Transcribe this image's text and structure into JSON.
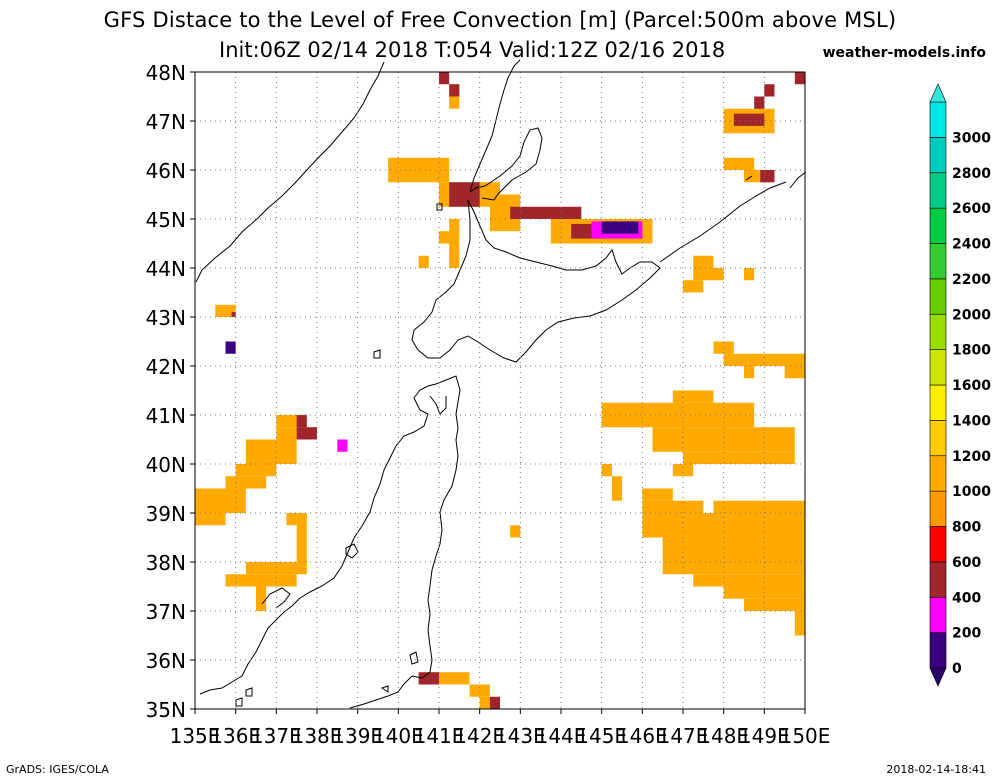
{
  "header": {
    "title": "GFS Distace to the Level of Free Convection [m] (Parcel:500m above MSL)",
    "subtitle": "Init:06Z 02/14 2018 T:054 Valid:12Z 02/16 2018",
    "source": "weather-models.info"
  },
  "footer": {
    "left": "GrADS: IGES/COLA",
    "right": "2018-02-14-18:41"
  },
  "chart_data": {
    "type": "heatmap",
    "lon_range": [
      135,
      150
    ],
    "lat_range": [
      35,
      48
    ],
    "x_ticks": [
      "135E",
      "136E",
      "137E",
      "138E",
      "139E",
      "140E",
      "141E",
      "142E",
      "143E",
      "144E",
      "145E",
      "146E",
      "147E",
      "148E",
      "149E",
      "150E"
    ],
    "y_ticks": [
      "35N",
      "36N",
      "37N",
      "38N",
      "39N",
      "40N",
      "41N",
      "42N",
      "43N",
      "44N",
      "45N",
      "46N",
      "47N",
      "48N"
    ],
    "grid": true,
    "colorbar": {
      "levels": [
        0,
        200,
        400,
        600,
        800,
        1000,
        1200,
        1400,
        1600,
        1800,
        2000,
        2200,
        2400,
        2600,
        2800,
        3000
      ],
      "colors": [
        "#3a0080",
        "#ff00ff",
        "#a0262c",
        "#ff0000",
        "#ff9900",
        "#ffaa00",
        "#ffcc00",
        "#ffee00",
        "#cce600",
        "#99dd00",
        "#66cc00",
        "#33cc33",
        "#00cc44",
        "#00cc88",
        "#00ccbb",
        "#00e6e6"
      ],
      "triangle_top": "#33e6dd",
      "triangle_bottom": "#2a006a"
    },
    "cells": [
      {
        "lon": [
          139.75,
          141.25
        ],
        "lat": [
          45.75,
          46.25
        ],
        "value": 1000
      },
      {
        "lon": [
          141.0,
          142.5
        ],
        "lat": [
          45.25,
          45.75
        ],
        "value": 1000
      },
      {
        "lon": [
          141.25,
          142.0
        ],
        "lat": [
          45.25,
          45.75
        ],
        "value": 500
      },
      {
        "lon": [
          142.25,
          143.0
        ],
        "lat": [
          44.75,
          45.5
        ],
        "value": 1000
      },
      {
        "lon": [
          142.75,
          143.25
        ],
        "lat": [
          45.0,
          45.25
        ],
        "value": 500
      },
      {
        "lon": [
          143.25,
          144.5
        ],
        "lat": [
          45.0,
          45.25
        ],
        "value": 500
      },
      {
        "lon": [
          143.75,
          146.25
        ],
        "lat": [
          44.5,
          45.0
        ],
        "value": 1000
      },
      {
        "lon": [
          144.25,
          145.0
        ],
        "lat": [
          44.6,
          44.9
        ],
        "value": 500
      },
      {
        "lon": [
          144.75,
          146.0
        ],
        "lat": [
          44.6,
          44.95
        ],
        "value": 350
      },
      {
        "lon": [
          145.0,
          145.9
        ],
        "lat": [
          44.7,
          44.95
        ],
        "value": 150
      },
      {
        "lon": [
          141.25,
          141.5
        ],
        "lat": [
          44.0,
          45.0
        ],
        "value": 1000
      },
      {
        "lon": [
          141.0,
          141.25
        ],
        "lat": [
          44.5,
          44.75
        ],
        "value": 1000
      },
      {
        "lon": [
          140.5,
          140.75
        ],
        "lat": [
          44.0,
          44.25
        ],
        "value": 1000
      },
      {
        "lon": [
          141.25,
          141.5
        ],
        "lat": [
          47.25,
          47.75
        ],
        "value": 1000
      },
      {
        "lon": [
          141.0,
          141.25
        ],
        "lat": [
          47.75,
          48.0
        ],
        "value": 500
      },
      {
        "lon": [
          141.25,
          141.5
        ],
        "lat": [
          47.5,
          47.75
        ],
        "value": 500
      },
      {
        "lon": [
          149.75,
          150.0
        ],
        "lat": [
          47.75,
          48.0
        ],
        "value": 500
      },
      {
        "lon": [
          148.0,
          149.25
        ],
        "lat": [
          46.75,
          47.25
        ],
        "value": 1000
      },
      {
        "lon": [
          148.25,
          149.0
        ],
        "lat": [
          46.9,
          47.15
        ],
        "value": 500
      },
      {
        "lon": [
          148.75,
          149.0
        ],
        "lat": [
          47.25,
          47.5
        ],
        "value": 500
      },
      {
        "lon": [
          149.0,
          149.25
        ],
        "lat": [
          47.5,
          47.75
        ],
        "value": 500
      },
      {
        "lon": [
          148.0,
          148.75
        ],
        "lat": [
          46.0,
          46.25
        ],
        "value": 1000
      },
      {
        "lon": [
          148.5,
          149.25
        ],
        "lat": [
          45.75,
          46.0
        ],
        "value": 1000
      },
      {
        "lon": [
          148.9,
          149.25
        ],
        "lat": [
          45.75,
          46.0
        ],
        "value": 500
      },
      {
        "lon": [
          147.25,
          147.75
        ],
        "lat": [
          43.75,
          44.25
        ],
        "value": 1000
      },
      {
        "lon": [
          147.0,
          147.5
        ],
        "lat": [
          43.5,
          43.75
        ],
        "value": 1000
      },
      {
        "lon": [
          147.75,
          148.0
        ],
        "lat": [
          43.75,
          44.0
        ],
        "value": 1000
      },
      {
        "lon": [
          148.5,
          148.75
        ],
        "lat": [
          43.75,
          44.0
        ],
        "value": 1000
      },
      {
        "lon": [
          135.5,
          136.0
        ],
        "lat": [
          43.0,
          43.25
        ],
        "value": 1000
      },
      {
        "lon": [
          135.9,
          136.0
        ],
        "lat": [
          43.0,
          43.1
        ],
        "value": 500
      },
      {
        "lon": [
          135.75,
          136.0
        ],
        "lat": [
          42.25,
          42.5
        ],
        "value": 150
      },
      {
        "lon": [
          147.75,
          148.25
        ],
        "lat": [
          42.25,
          42.5
        ],
        "value": 1000
      },
      {
        "lon": [
          148.0,
          150.0
        ],
        "lat": [
          42.0,
          42.25
        ],
        "value": 1000
      },
      {
        "lon": [
          148.5,
          148.75
        ],
        "lat": [
          41.75,
          42.0
        ],
        "value": 1000
      },
      {
        "lon": [
          149.5,
          150.0
        ],
        "lat": [
          41.75,
          42.0
        ],
        "value": 1000
      },
      {
        "lon": [
          146.75,
          147.75
        ],
        "lat": [
          41.25,
          41.5
        ],
        "value": 1000
      },
      {
        "lon": [
          145.0,
          148.75
        ],
        "lat": [
          40.75,
          41.25
        ],
        "value": 1000
      },
      {
        "lon": [
          146.25,
          149.75
        ],
        "lat": [
          40.25,
          40.75
        ],
        "value": 1000
      },
      {
        "lon": [
          147.0,
          149.75
        ],
        "lat": [
          40.0,
          40.25
        ],
        "value": 1000
      },
      {
        "lon": [
          146.75,
          147.25
        ],
        "lat": [
          39.75,
          40.0
        ],
        "value": 1000
      },
      {
        "lon": [
          145.0,
          145.25
        ],
        "lat": [
          39.75,
          40.0
        ],
        "value": 1000
      },
      {
        "lon": [
          145.25,
          145.5
        ],
        "lat": [
          39.25,
          39.75
        ],
        "value": 1000
      },
      {
        "lon": [
          146.0,
          146.75
        ],
        "lat": [
          39.25,
          39.5
        ],
        "value": 1000
      },
      {
        "lon": [
          146.0,
          147.5
        ],
        "lat": [
          38.5,
          39.25
        ],
        "value": 1000
      },
      {
        "lon": [
          147.75,
          150.0
        ],
        "lat": [
          39.0,
          39.25
        ],
        "value": 1000
      },
      {
        "lon": [
          146.5,
          150.0
        ],
        "lat": [
          37.75,
          39.0
        ],
        "value": 1000
      },
      {
        "lon": [
          147.25,
          150.0
        ],
        "lat": [
          37.5,
          37.75
        ],
        "value": 1000
      },
      {
        "lon": [
          148.0,
          150.0
        ],
        "lat": [
          37.25,
          37.5
        ],
        "value": 1000
      },
      {
        "lon": [
          148.5,
          150.0
        ],
        "lat": [
          37.0,
          37.25
        ],
        "value": 1000
      },
      {
        "lon": [
          149.75,
          150.0
        ],
        "lat": [
          36.5,
          37.0
        ],
        "value": 1000
      },
      {
        "lon": [
          137.0,
          137.75
        ],
        "lat": [
          40.75,
          41.0
        ],
        "value": 1000
      },
      {
        "lon": [
          137.0,
          138.0
        ],
        "lat": [
          40.5,
          40.75
        ],
        "value": 1000
      },
      {
        "lon": [
          137.5,
          138.0
        ],
        "lat": [
          40.5,
          40.75
        ],
        "value": 500
      },
      {
        "lon": [
          137.5,
          137.75
        ],
        "lat": [
          40.75,
          41.0
        ],
        "value": 500
      },
      {
        "lon": [
          136.25,
          137.5
        ],
        "lat": [
          40.0,
          40.5
        ],
        "value": 1000
      },
      {
        "lon": [
          136.0,
          137.0
        ],
        "lat": [
          39.75,
          40.0
        ],
        "value": 1000
      },
      {
        "lon": [
          135.75,
          136.75
        ],
        "lat": [
          39.5,
          39.75
        ],
        "value": 1000
      },
      {
        "lon": [
          135.0,
          136.25
        ],
        "lat": [
          39.0,
          39.5
        ],
        "value": 1000
      },
      {
        "lon": [
          135.0,
          135.75
        ],
        "lat": [
          38.75,
          39.0
        ],
        "value": 1000
      },
      {
        "lon": [
          138.5,
          138.75
        ],
        "lat": [
          40.25,
          40.5
        ],
        "value": 350
      },
      {
        "lon": [
          137.25,
          137.5
        ],
        "lat": [
          38.75,
          39.0
        ],
        "value": 1000
      },
      {
        "lon": [
          137.5,
          137.75
        ],
        "lat": [
          38.0,
          39.0
        ],
        "value": 1000
      },
      {
        "lon": [
          136.25,
          137.75
        ],
        "lat": [
          37.75,
          38.0
        ],
        "value": 1000
      },
      {
        "lon": [
          135.75,
          137.5
        ],
        "lat": [
          37.5,
          37.75
        ],
        "value": 1000
      },
      {
        "lon": [
          136.5,
          136.75
        ],
        "lat": [
          37.0,
          37.5
        ],
        "value": 1000
      },
      {
        "lon": [
          142.75,
          143.0
        ],
        "lat": [
          38.5,
          38.75
        ],
        "value": 1000
      },
      {
        "lon": [
          140.5,
          141.75
        ],
        "lat": [
          35.5,
          35.75
        ],
        "value": 1000
      },
      {
        "lon": [
          140.5,
          141.0
        ],
        "lat": [
          35.5,
          35.75
        ],
        "value": 500
      },
      {
        "lon": [
          141.75,
          142.25
        ],
        "lat": [
          35.25,
          35.5
        ],
        "value": 1000
      },
      {
        "lon": [
          142.0,
          142.25
        ],
        "lat": [
          35.0,
          35.25
        ],
        "value": 1000
      },
      {
        "lon": [
          142.25,
          142.5
        ],
        "lat": [
          35.0,
          35.25
        ],
        "value": 500
      }
    ]
  }
}
